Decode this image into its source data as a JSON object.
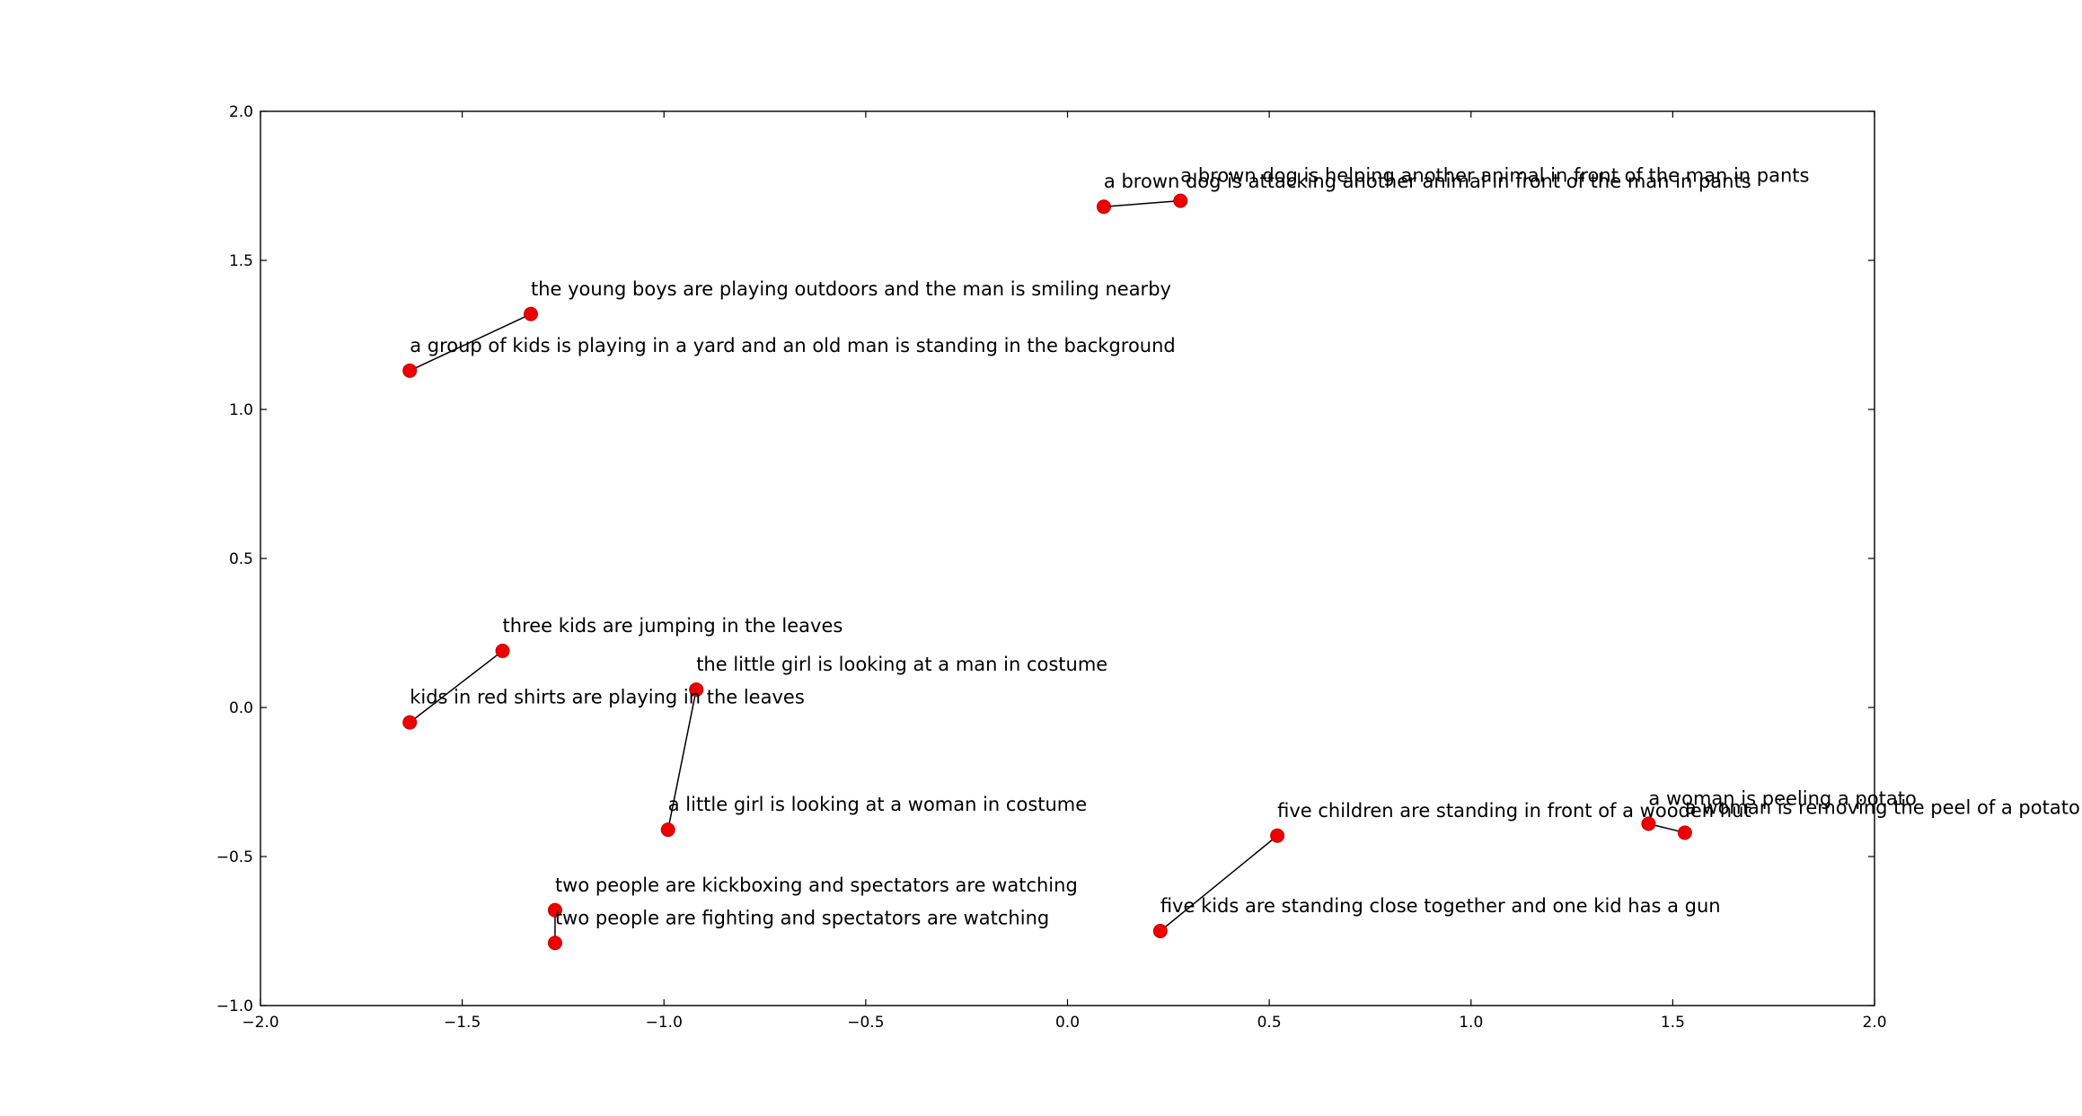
{
  "chart_data": {
    "type": "scatter",
    "title": "",
    "xlabel": "",
    "ylabel": "",
    "xlim": [
      -2.0,
      2.0
    ],
    "ylim": [
      -1.0,
      2.0
    ],
    "grid": false,
    "x_ticks": [
      -2.0,
      -1.5,
      -1.0,
      -0.5,
      0.0,
      0.5,
      1.0,
      1.5,
      2.0
    ],
    "y_ticks": [
      -1.0,
      -0.5,
      0.0,
      0.5,
      1.0,
      1.5,
      2.0
    ],
    "x_tick_labels": [
      "−2.0",
      "−1.5",
      "−1.0",
      "−0.5",
      "0.0",
      "0.5",
      "1.0",
      "1.5",
      "2.0"
    ],
    "y_tick_labels": [
      "−1.0",
      "−0.5",
      "0.0",
      "0.5",
      "1.0",
      "1.5",
      "2.0"
    ],
    "marker_color": "#ee0000",
    "line_color": "#000000",
    "points": [
      {
        "x": 0.09,
        "y": 1.68,
        "label": "a brown dog is attacking another animal in front of the man in pants"
      },
      {
        "x": 0.28,
        "y": 1.7,
        "label": "a brown dog is helping another animal in front of the man in pants"
      },
      {
        "x": -1.33,
        "y": 1.32,
        "label": "the young boys are playing outdoors and the man is smiling nearby"
      },
      {
        "x": -1.63,
        "y": 1.13,
        "label": "a group of kids is playing in a yard and an old man is standing in the background"
      },
      {
        "x": -1.4,
        "y": 0.19,
        "label": "three kids are jumping in the leaves"
      },
      {
        "x": -1.63,
        "y": -0.05,
        "label": "kids in red shirts are playing in the leaves"
      },
      {
        "x": -0.92,
        "y": 0.06,
        "label": "the little girl is looking at a man in costume"
      },
      {
        "x": -0.99,
        "y": -0.41,
        "label": "a little girl is looking at a woman in costume"
      },
      {
        "x": -1.27,
        "y": -0.68,
        "label": "two people are kickboxing and spectators are watching"
      },
      {
        "x": -1.27,
        "y": -0.79,
        "label": "two people are fighting and spectators are watching"
      },
      {
        "x": 0.52,
        "y": -0.43,
        "label": "five children are standing in front of a wooden hut"
      },
      {
        "x": 0.23,
        "y": -0.75,
        "label": "five kids are standing close together and one kid has a gun"
      },
      {
        "x": 1.44,
        "y": -0.39,
        "label": "a woman is peeling a potato"
      },
      {
        "x": 1.53,
        "y": -0.42,
        "label": "a woman is removing the peel of a potato"
      }
    ],
    "pairs": [
      [
        0,
        1
      ],
      [
        2,
        3
      ],
      [
        4,
        5
      ],
      [
        6,
        7
      ],
      [
        8,
        9
      ],
      [
        10,
        11
      ],
      [
        12,
        13
      ]
    ]
  }
}
